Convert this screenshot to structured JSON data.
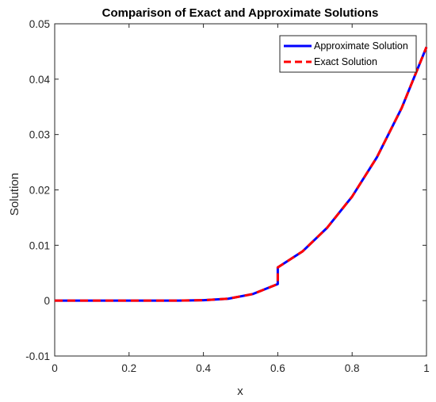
{
  "chart_data": {
    "type": "line",
    "title": "Comparison of Exact and Approximate Solutions",
    "xlabel": "x",
    "ylabel": "Solution",
    "xlim": [
      0,
      1
    ],
    "ylim": [
      -0.01,
      0.05
    ],
    "xticks": [
      0,
      0.2,
      0.4,
      0.6,
      0.8,
      1
    ],
    "xtick_labels": [
      "0",
      "0.2",
      "0.4",
      "0.6",
      "0.8",
      "1"
    ],
    "yticks": [
      -0.01,
      0,
      0.01,
      0.02,
      0.03,
      0.04,
      0.05
    ],
    "ytick_labels": [
      "-0.01",
      "0",
      "0.01",
      "0.02",
      "0.03",
      "0.04",
      "0.05"
    ],
    "grid": false,
    "legend_position": "top-right",
    "series": [
      {
        "name": "Approximate Solution",
        "color": "#0000ff",
        "style": "solid",
        "x": [
          0,
          0.0667,
          0.1333,
          0.2,
          0.2667,
          0.3333,
          0.4,
          0.4667,
          0.5333,
          0.6,
          0.6,
          0.6667,
          0.7333,
          0.8,
          0.8667,
          0.9333,
          1
        ],
        "y": [
          0,
          0,
          0,
          0,
          0,
          1e-05,
          8e-05,
          0.00035,
          0.0012,
          0.003,
          0.006,
          0.0089,
          0.0132,
          0.0188,
          0.0259,
          0.0348,
          0.0458
        ]
      },
      {
        "name": "Exact Solution",
        "color": "#ff0000",
        "style": "dashed",
        "x": [
          0,
          0.0667,
          0.1333,
          0.2,
          0.2667,
          0.3333,
          0.4,
          0.4667,
          0.5333,
          0.6,
          0.6,
          0.6667,
          0.7333,
          0.8,
          0.8667,
          0.9333,
          1
        ],
        "y": [
          0,
          0,
          0,
          0,
          0,
          1e-05,
          8e-05,
          0.00035,
          0.0012,
          0.003,
          0.006,
          0.0089,
          0.0132,
          0.0188,
          0.0259,
          0.0348,
          0.0458
        ]
      }
    ]
  }
}
